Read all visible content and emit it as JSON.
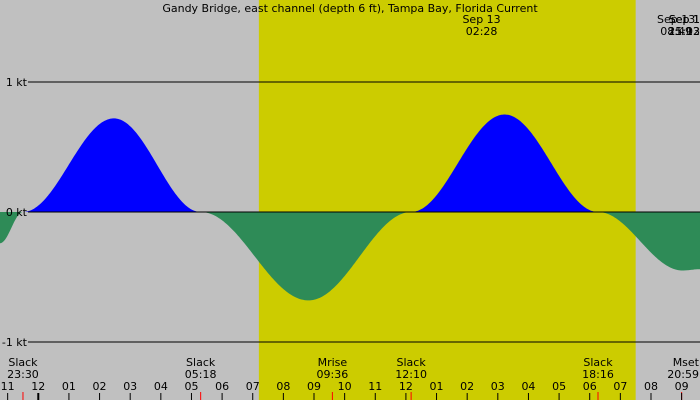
{
  "title": "Gandy Bridge, east channel (depth 6 ft), Tampa Bay, Florida Current",
  "colors": {
    "night": "#c0c0c0",
    "day": "#cccc00",
    "flood": "#0000ff",
    "ebb": "#2e8b57",
    "hour_tick": "#000000",
    "event_tick": "#ff0000"
  },
  "chart_data": {
    "type": "area",
    "title": "Gandy Bridge, east channel (depth 6 ft), Tampa Bay, Florida Current",
    "xlabel": "",
    "ylabel": "",
    "x_unit": "hour",
    "xlim": [
      10.75,
      33.6
    ],
    "ylim": [
      -1,
      1
    ],
    "y_ticks": [
      {
        "value": 1,
        "label": "1 kt"
      },
      {
        "value": 0,
        "label": "0 kt"
      },
      {
        "value": -1,
        "label": "-1 kt"
      }
    ],
    "hour_labels": [
      "11",
      "12",
      "01",
      "02",
      "03",
      "04",
      "05",
      "06",
      "07",
      "08",
      "09",
      "10",
      "11",
      "12",
      "01",
      "02",
      "03",
      "04",
      "05",
      "06",
      "07",
      "08",
      "09"
    ],
    "first_hour": 11,
    "day_band": {
      "start": 19.2,
      "end": 31.5
    },
    "peaks": [
      {
        "date": "Sep 13",
        "time": "02:28",
        "x": 26.47,
        "value": 0.72
      },
      {
        "date": "Sep 13",
        "time": "08:49",
        "x": 32.82,
        "value": -0.68
      },
      {
        "date": "Sep 13",
        "time": "15:13",
        "x": 39.22,
        "value": 0.75
      },
      {
        "date": "Sep 13",
        "time": "21:02",
        "x": 45.03,
        "value": -0.45
      }
    ],
    "peak_label_edge": "Sep 1",
    "curve": [
      {
        "x": 10.75,
        "y": -0.24
      },
      {
        "x": 11.5,
        "y": 0.0
      },
      {
        "x": 14.47,
        "y": 0.72
      },
      {
        "x": 17.3,
        "y": 0.0
      },
      {
        "x": 20.82,
        "y": -0.68
      },
      {
        "x": 24.17,
        "y": 0.0
      },
      {
        "x": 27.22,
        "y": 0.75
      },
      {
        "x": 30.27,
        "y": 0.0
      },
      {
        "x": 33.03,
        "y": -0.45
      },
      {
        "x": 33.6,
        "y": -0.44
      }
    ],
    "events": [
      {
        "name": "Slack",
        "time": "23:30",
        "x": 11.5
      },
      {
        "name": "Slack",
        "time": "05:18",
        "x": 17.3
      },
      {
        "name": "Mrise",
        "time": "09:36",
        "x": 21.6
      },
      {
        "name": "Slack",
        "time": "12:10",
        "x": 24.17
      },
      {
        "name": "Slack",
        "time": "18:16",
        "x": 30.27
      },
      {
        "name": "Mset",
        "time": "20:59",
        "x": 33.0
      }
    ]
  }
}
